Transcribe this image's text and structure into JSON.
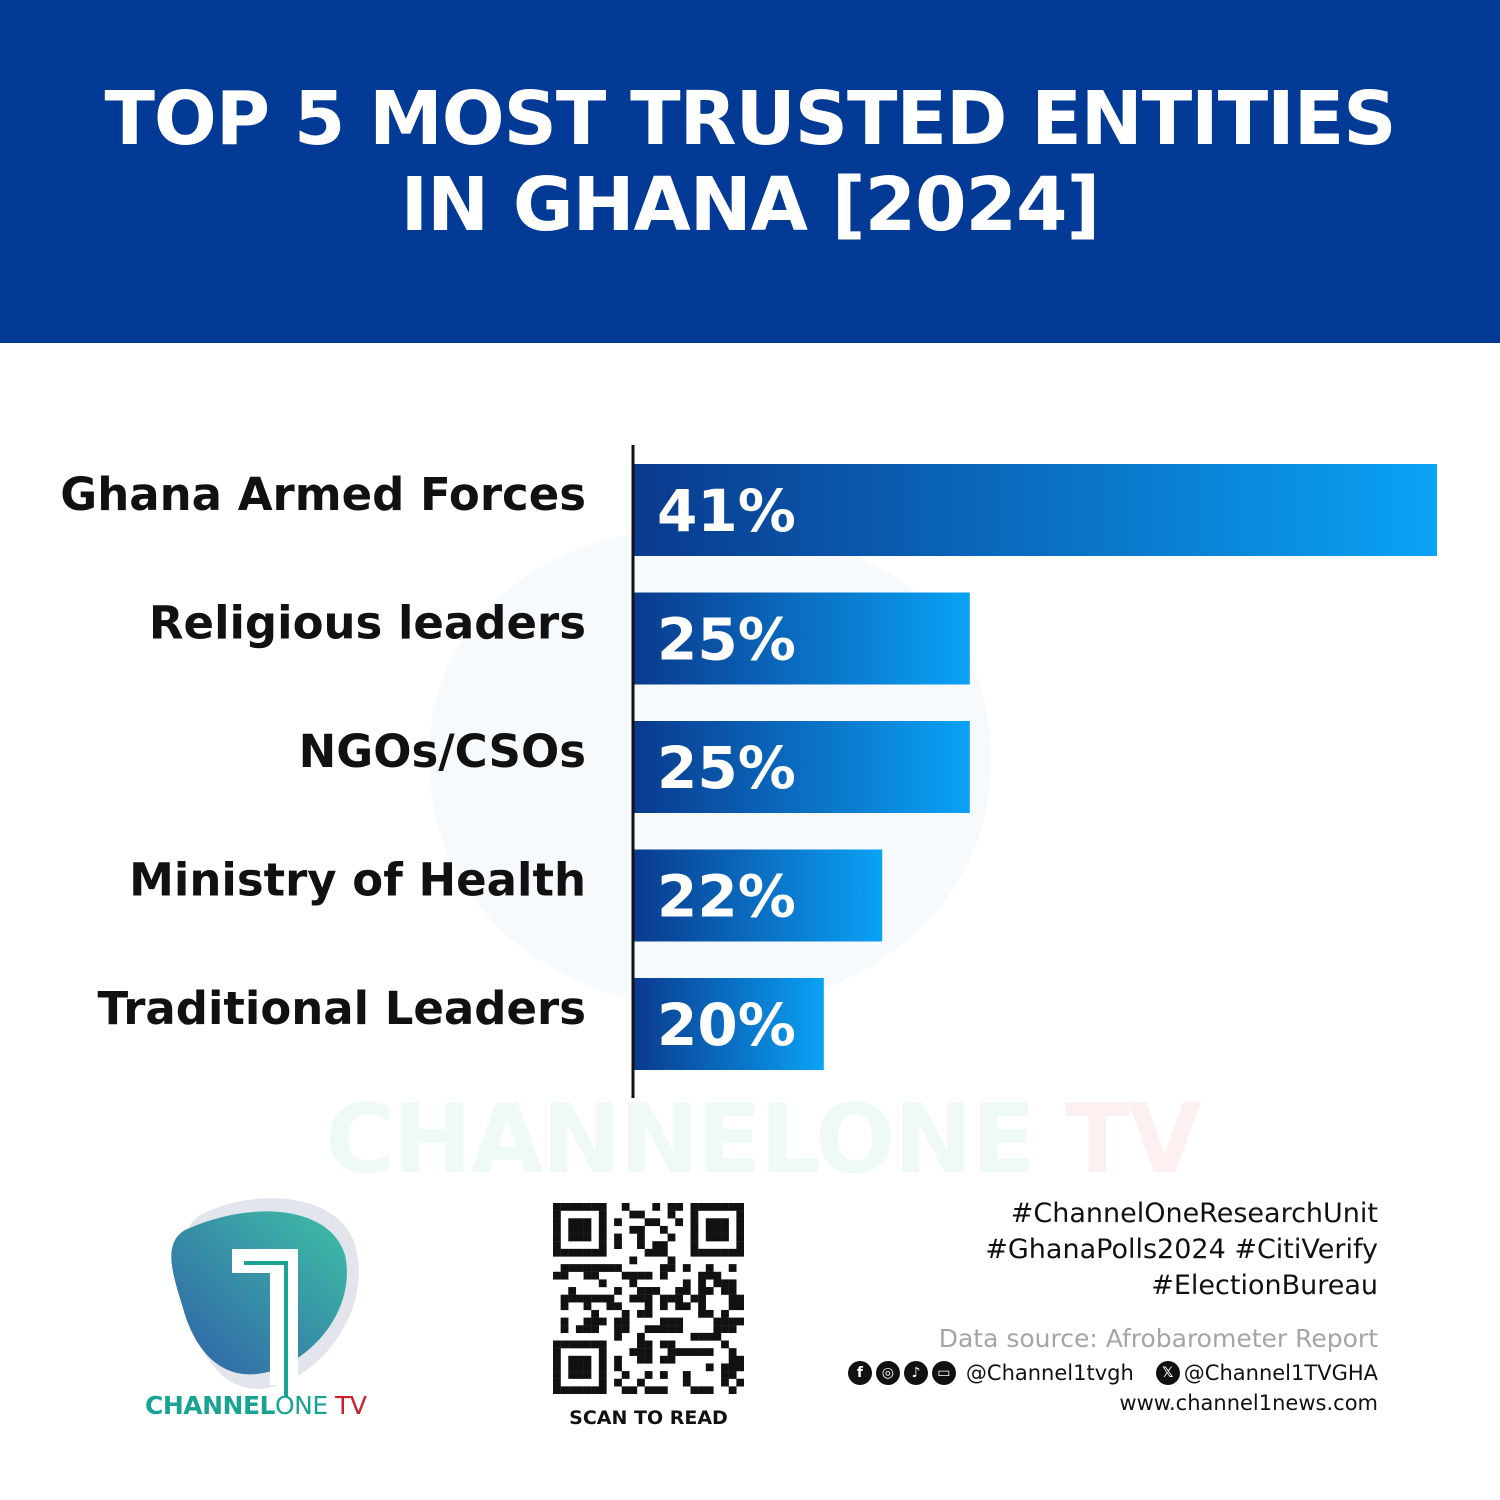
{
  "header": {
    "title_line1": "TOP 5 MOST TRUSTED ENTITIES",
    "title_line2": "IN GHANA [2024]"
  },
  "chart_data": {
    "type": "bar",
    "orientation": "horizontal",
    "title": "TOP 5 MOST TRUSTED ENTITIES IN GHANA [2024]",
    "categories": [
      "Ghana Armed Forces",
      "Religious leaders",
      "NGOs/CSOs",
      "Ministry of Health",
      "Traditional Leaders"
    ],
    "values": [
      41,
      25,
      25,
      22,
      20
    ],
    "labels": [
      "41%",
      "25%",
      "25%",
      "22%",
      "20%"
    ],
    "unit": "%",
    "xlim": [
      13.5,
      41
    ],
    "grid": false,
    "colors": {
      "bar_start": "#0a3a8e",
      "bar_end": "#0aa2f5"
    }
  },
  "watermark": {
    "part1": "CHANNELONE",
    "part2": " TV"
  },
  "logo": {
    "channel": "CHANNEL",
    "one": "ONE",
    "tv": " TV"
  },
  "qr": {
    "caption": "SCAN TO READ"
  },
  "footer": {
    "tags": [
      "#ChannelOneResearchUnit",
      "#GhanaPolls2024 #CitiVerify",
      "#ElectionBureau"
    ],
    "source": "Data source: Afrobarometer Report",
    "social_icons": [
      "facebook-icon",
      "instagram-icon",
      "tiktok-icon",
      "youtube-icon"
    ],
    "handle1": "@Channel1tvgh",
    "handle2": "@Channel1TVGHA",
    "website": "www.channel1news.com"
  },
  "colors": {
    "header_bg": "#033a96",
    "logo_teal": "#1aa392",
    "logo_red": "#c8202a"
  }
}
